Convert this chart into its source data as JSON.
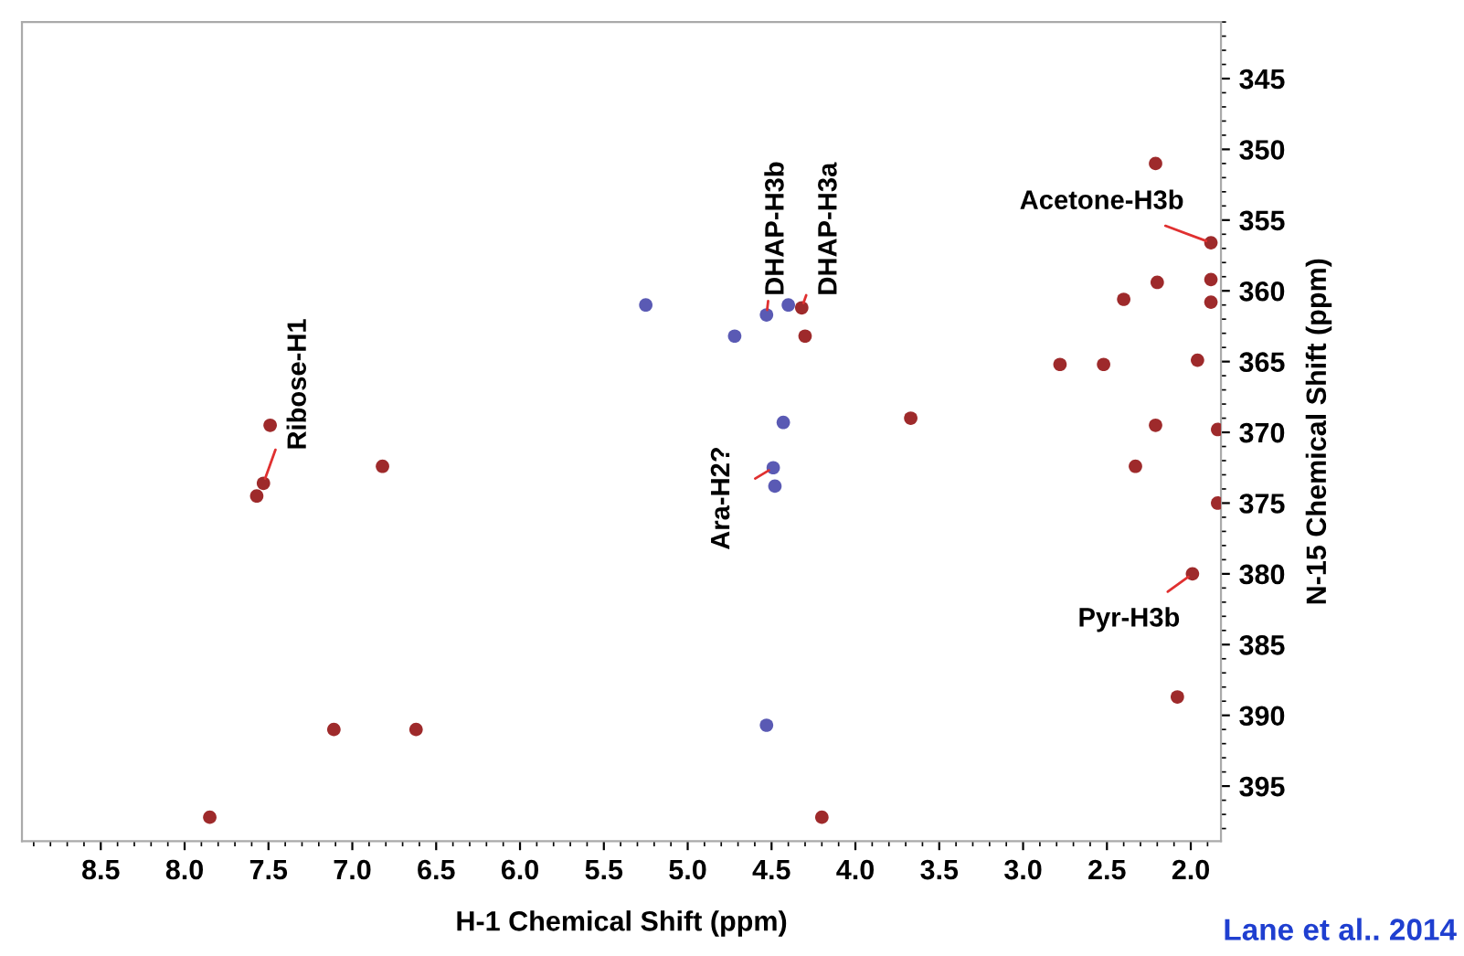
{
  "chart_data": {
    "type": "scatter",
    "xlabel": "H-1 Chemical Shift (ppm)",
    "ylabel": "N-15 Chemical Shift (ppm)",
    "series": [
      {
        "color": "#9e2a2b",
        "x": [
          7.49,
          7.53,
          7.57,
          6.82,
          7.11,
          6.62,
          7.85,
          4.32,
          4.3,
          4.2,
          3.67,
          2.78,
          2.52,
          2.4,
          2.21,
          2.2,
          2.21,
          2.33,
          1.96,
          1.99,
          2.08,
          1.84,
          1.84,
          1.88,
          1.88,
          1.88
        ],
        "values": [
          369.5,
          373.6,
          374.5,
          372.4,
          391.0,
          391.0,
          397.2,
          361.2,
          363.2,
          397.2,
          369.0,
          365.2,
          365.2,
          360.6,
          351.0,
          359.4,
          369.5,
          372.4,
          364.9,
          380.0,
          388.7,
          369.8,
          375.0,
          356.6,
          359.2,
          360.8
        ]
      },
      {
        "color": "#5a5ab4",
        "x": [
          5.25,
          4.53,
          4.4,
          4.72,
          4.43,
          4.49,
          4.48,
          4.53
        ],
        "values": [
          361.0,
          361.7,
          361.0,
          363.2,
          369.3,
          372.5,
          373.8,
          390.7
        ]
      }
    ],
    "marker": "circle",
    "grid": false,
    "xlim": [
      8.97,
      1.82
    ],
    "ylim": [
      398.9,
      341
    ],
    "xticks": [
      {
        "value": 8.5,
        "label": "8.5"
      },
      {
        "value": 8,
        "label": "8.0"
      },
      {
        "value": 7.5,
        "label": "7.5"
      },
      {
        "value": 7,
        "label": "7.0"
      },
      {
        "value": 6.5,
        "label": "6.5"
      },
      {
        "value": 6,
        "label": "6.0"
      },
      {
        "value": 5.5,
        "label": "5.5"
      },
      {
        "value": 5,
        "label": "5.0"
      },
      {
        "value": 4.5,
        "label": "4.5"
      },
      {
        "value": 4,
        "label": "4.0"
      },
      {
        "value": 3.5,
        "label": "3.5"
      },
      {
        "value": 3,
        "label": "3.0"
      },
      {
        "value": 2.5,
        "label": "2.5"
      },
      {
        "value": 2,
        "label": "2.0"
      }
    ],
    "yticks": [
      345,
      350,
      355,
      360,
      365,
      370,
      375,
      380,
      385,
      390,
      395
    ],
    "annotations": [
      {
        "text": "Ribose-H1",
        "x": 7.53,
        "y": 373.6
      },
      {
        "text": "DHAP-H3b",
        "x": 4.53,
        "y": 361.7
      },
      {
        "text": "DHAP-H3a",
        "x": 4.32,
        "y": 361.2
      },
      {
        "text": "Ara-H2?",
        "x": 4.49,
        "y": 372.5
      },
      {
        "text": "Acetone-H3b",
        "x": 1.88,
        "y": 356.6
      },
      {
        "text": "Pyr-H3b",
        "x": 1.99,
        "y": 380.0
      },
      "Lane et al.. 2014"
    ]
  }
}
